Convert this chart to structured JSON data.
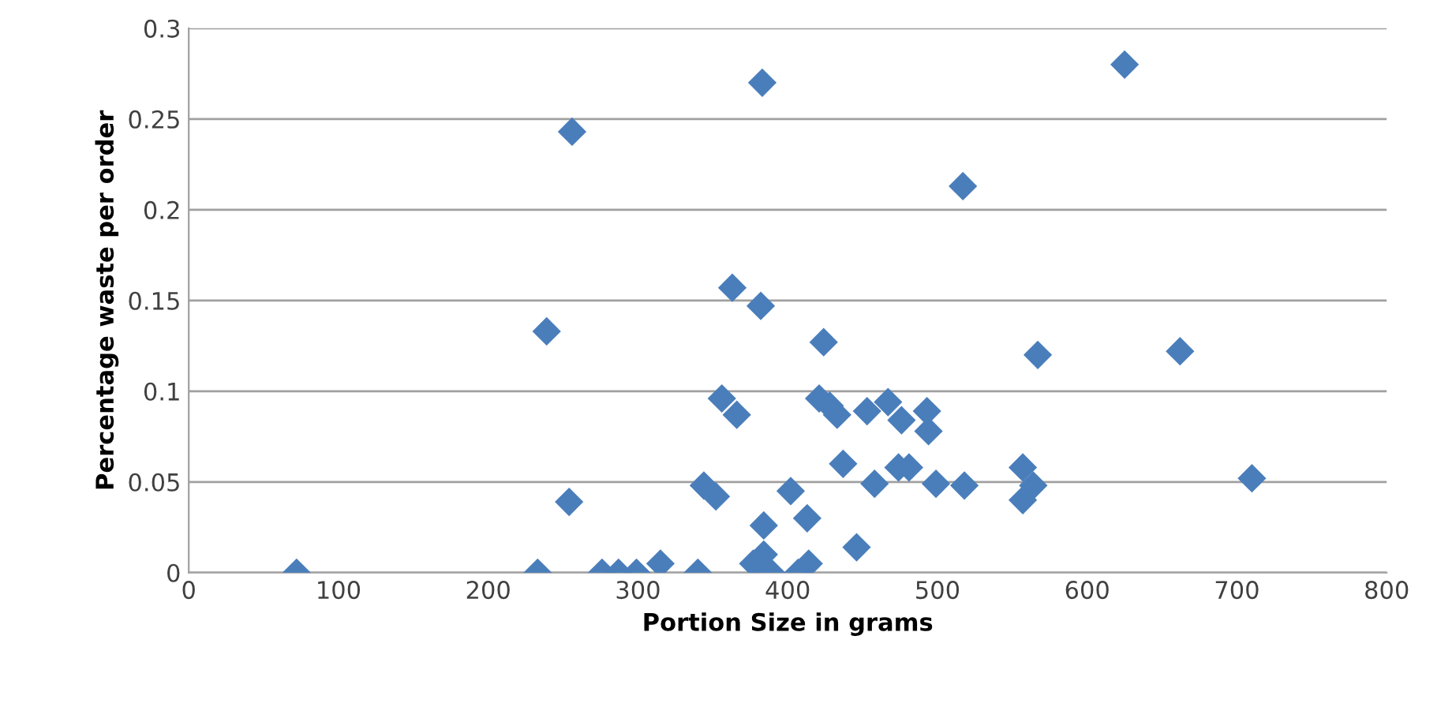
{
  "chart_data": {
    "type": "scatter",
    "xlabel": "Portion Size in grams",
    "ylabel": "Percentage waste per order",
    "xlim": [
      0,
      800
    ],
    "xticks": [
      0,
      100,
      200,
      300,
      400,
      500,
      600,
      700,
      800
    ],
    "ylim": [
      0,
      0.3
    ],
    "yticks": [
      {
        "value": 0,
        "label": "0"
      },
      {
        "value": 0.05,
        "label": "0.05"
      },
      {
        "value": 0.1,
        "label": "0.1"
      },
      {
        "value": 0.15,
        "label": "0.15"
      },
      {
        "value": 0.2,
        "label": "0.2"
      },
      {
        "value": 0.25,
        "label": "0.25"
      },
      {
        "value": 0.3,
        "label": "0.3"
      }
    ],
    "grid": "y",
    "marker": "diamond",
    "series": [
      {
        "color": "#4a7ebb",
        "x": [
          72,
          233,
          239,
          256,
          254,
          276,
          287,
          299,
          315,
          340,
          344,
          352,
          356,
          366,
          363,
          382,
          383,
          377,
          384,
          389,
          407,
          414,
          384,
          402,
          413,
          421,
          424,
          428,
          433,
          437,
          446,
          453,
          458,
          467,
          476,
          474,
          481,
          493,
          494,
          499,
          518,
          517,
          557,
          564,
          557,
          567,
          625,
          662,
          710
        ],
        "values": [
          0,
          0,
          0.133,
          0.243,
          0.039,
          0,
          0,
          0,
          0.005,
          0,
          0.048,
          0.042,
          0.096,
          0.087,
          0.157,
          0.147,
          0.27,
          0.005,
          0.01,
          0,
          0,
          0.005,
          0.026,
          0.045,
          0.03,
          0.096,
          0.127,
          0.092,
          0.087,
          0.06,
          0.014,
          0.089,
          0.049,
          0.094,
          0.084,
          0.058,
          0.058,
          0.089,
          0.078,
          0.049,
          0.048,
          0.213,
          0.058,
          0.048,
          0.04,
          0.12,
          0.28,
          0.122,
          0.052
        ]
      }
    ]
  }
}
